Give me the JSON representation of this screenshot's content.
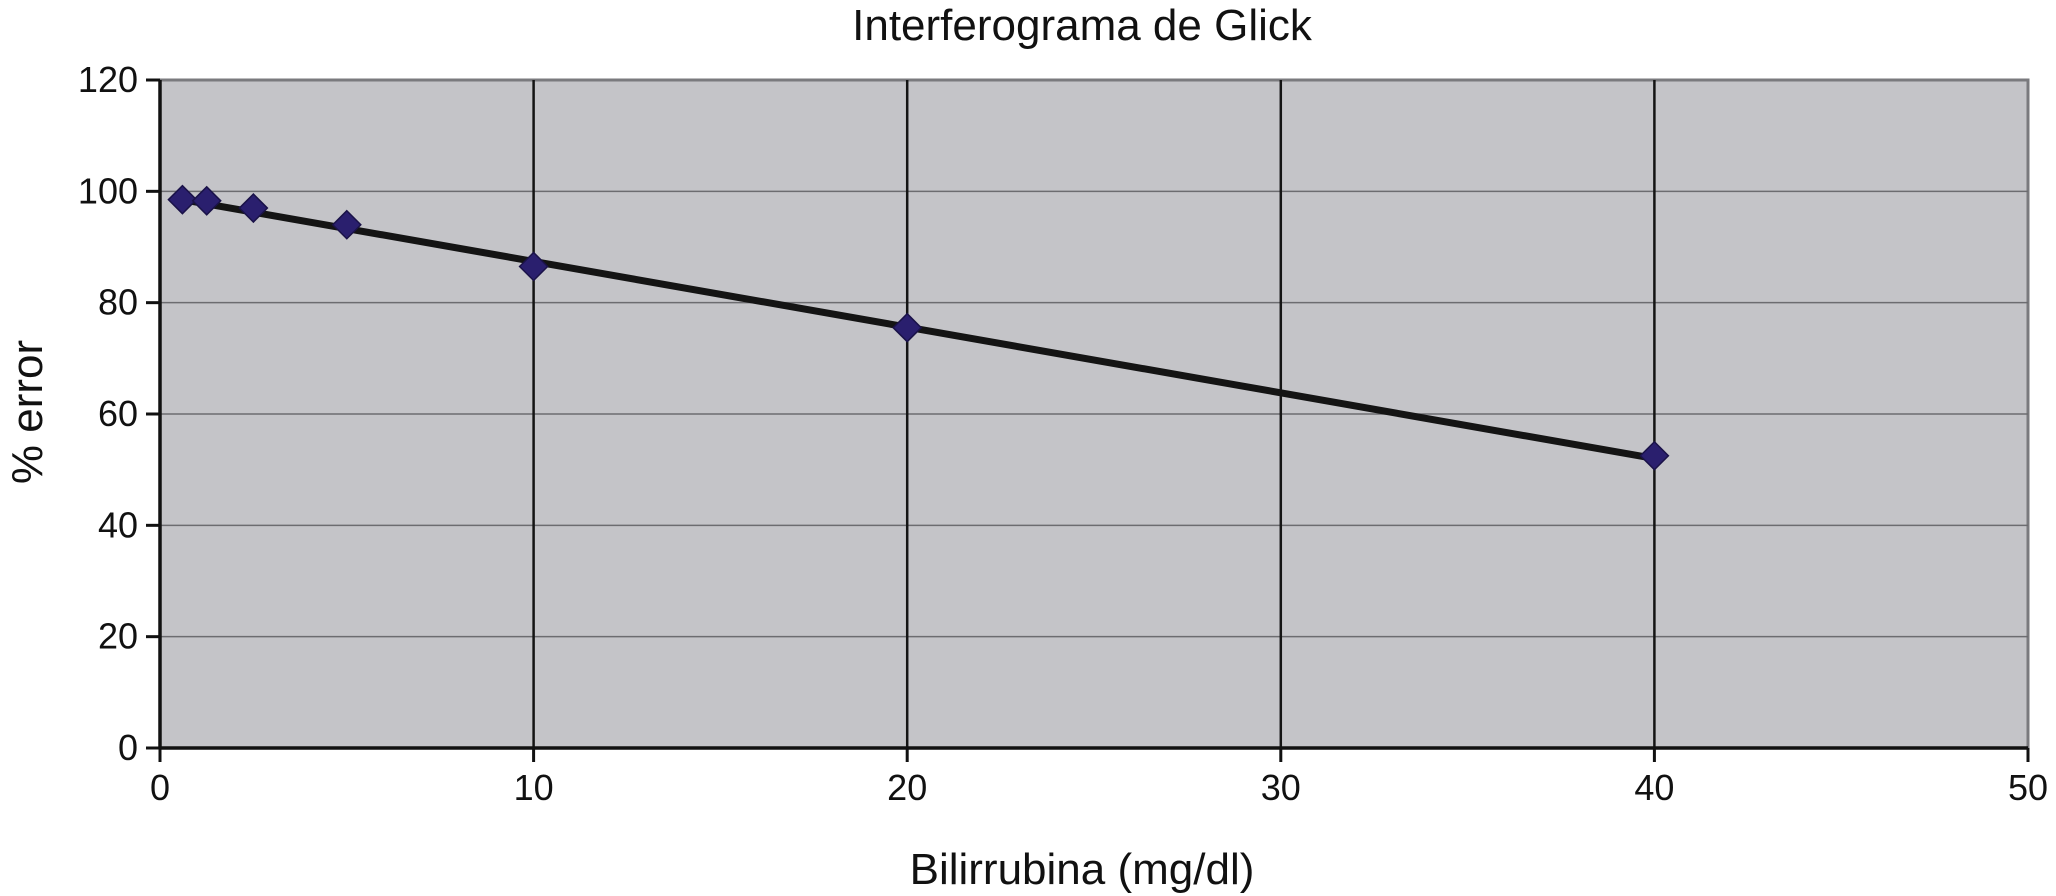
{
  "chart_data": {
    "type": "scatter",
    "title": "Interferograma de Glick",
    "xlabel": "Bilirrubina (mg/dl)",
    "ylabel": "% error",
    "xlim": [
      0,
      50
    ],
    "ylim": [
      0,
      120
    ],
    "xticks": [
      0,
      10,
      20,
      30,
      40,
      50
    ],
    "yticks": [
      0,
      20,
      40,
      60,
      80,
      100,
      120
    ],
    "xtick_labels": [
      "0",
      "10",
      "20",
      "30",
      "40",
      "50"
    ],
    "ytick_labels": [
      "0",
      "20",
      "40",
      "60",
      "80",
      "100",
      "120"
    ],
    "grid": "both",
    "legend": "none",
    "series": [
      {
        "marker": "diamond",
        "x": [
          0.6,
          1.25,
          2.5,
          5,
          10,
          20,
          40
        ],
        "y": [
          98.5,
          98.3,
          97,
          94,
          86.5,
          75.5,
          52.5
        ]
      }
    ],
    "trendline": {
      "type": "linear",
      "x": [
        0.6,
        40
      ],
      "y": [
        98.5,
        52
      ]
    },
    "colors": {
      "plot_background": "#c4c4c8",
      "marker": "#2a1f6e",
      "trendline": "#141414",
      "vertical_grid": "#141414",
      "horizontal_grid": "#6c6c70",
      "frame": "#7a7a7e"
    }
  }
}
